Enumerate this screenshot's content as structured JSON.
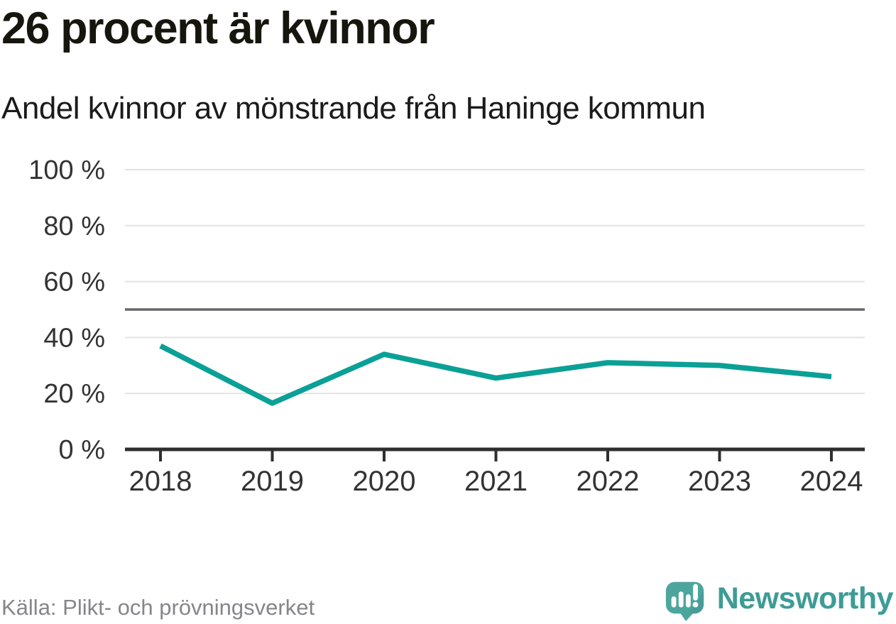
{
  "header": {
    "title": "26 procent är kvinnor",
    "subtitle": "Andel kvinnor av mönstrande från Haninge kommun"
  },
  "footer": {
    "source": "Källa: Plikt- och prövningsverket",
    "brand_name": "Newsworthy"
  },
  "colors": {
    "line": "#0aa096",
    "grid": "#e2e2e2",
    "reference_line": "#65656c",
    "axis": "#2e2e2e",
    "tick_label": "#333333",
    "title_text": "#16160f",
    "source_text": "#85868a",
    "brand_teal": "#3d9c96",
    "logo_bubble": "#4ca69e"
  },
  "chart_data": {
    "type": "line",
    "title": "26 procent är kvinnor",
    "subtitle": "Andel kvinnor av mönstrande från Haninge kommun",
    "x": [
      "2018",
      "2019",
      "2020",
      "2021",
      "2022",
      "2023",
      "2024"
    ],
    "series": [
      {
        "name": "Andel kvinnor av mönstrande",
        "values": [
          37,
          16.5,
          34,
          25.5,
          31,
          30,
          26
        ]
      }
    ],
    "unit": "%",
    "ylim": [
      0,
      100
    ],
    "yticks": [
      0,
      20,
      40,
      60,
      80,
      100
    ],
    "ytick_labels": [
      "0 %",
      "20 %",
      "40 %",
      "60 %",
      "80 %",
      "100 %"
    ],
    "reference_line": {
      "value": 50
    },
    "grid": true,
    "legend": "none"
  }
}
